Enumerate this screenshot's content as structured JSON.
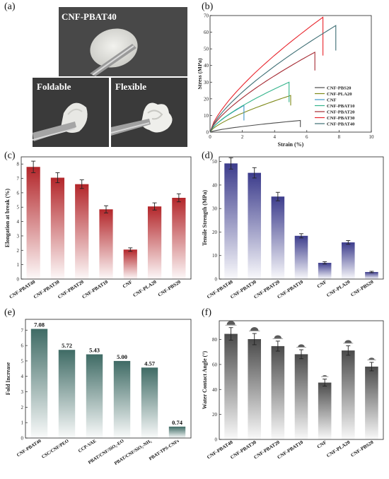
{
  "panels": {
    "a": "(a)",
    "b": "(b)",
    "c": "(c)",
    "d": "(d)",
    "e": "(e)",
    "f": "(f)"
  },
  "photos": {
    "main_caption": "CNF-PBAT40",
    "foldable_caption": "Foldable",
    "flexible_caption": "Flexible"
  },
  "colors": {
    "red": "#b3262a",
    "blue": "#3c3c8c",
    "teal": "#3f6b65",
    "gray": "#4a4a4a"
  },
  "chart_data": [
    {
      "id": "b",
      "type": "line",
      "xlabel": "Strain (%)",
      "ylabel": "Stress (MPa)",
      "xlim": [
        0,
        10
      ],
      "ylim": [
        0,
        70
      ],
      "xticks": [
        0,
        2,
        4,
        6,
        8,
        10
      ],
      "yticks": [
        0,
        10,
        20,
        30,
        40,
        50,
        60,
        70
      ],
      "legend_position": "bottom-right",
      "series": [
        {
          "name": "CNF-PBS20",
          "color": "#4d4d4d",
          "break_x": 5.6,
          "break_y": 7,
          "drop_to": 3
        },
        {
          "name": "CNF-PLA20",
          "color": "#7f8a1a",
          "break_x": 5.0,
          "break_y": 22,
          "drop_to": 16
        },
        {
          "name": "CNF",
          "color": "#3f95c8",
          "break_x": 2.1,
          "break_y": 16,
          "drop_to": 7
        },
        {
          "name": "CNF-PBAT10",
          "color": "#34b48c",
          "break_x": 4.9,
          "break_y": 30,
          "drop_to": 18
        },
        {
          "name": "CNF-PBAT20",
          "color": "#a52a33",
          "break_x": 6.5,
          "break_y": 48,
          "drop_to": 37
        },
        {
          "name": "CNF-PBAT30",
          "color": "#e8232b",
          "break_x": 7.0,
          "break_y": 69,
          "drop_to": 46
        },
        {
          "name": "CNF-PBAT40",
          "color": "#3c6d73",
          "break_x": 7.8,
          "break_y": 64,
          "drop_to": 49
        }
      ]
    },
    {
      "id": "c",
      "type": "bar",
      "ylabel": "Elongation at break (%)",
      "ylim": [
        0,
        8.5
      ],
      "yticks": [
        0,
        1,
        2,
        3,
        4,
        5,
        6,
        7,
        8
      ],
      "categories": [
        "CNF-PBAT40",
        "CNF-PBAT30",
        "CNF-PBAT20",
        "CNF-PBAT10",
        "CNF",
        "CNF-PLA20",
        "CNF-PBS20"
      ],
      "values": [
        7.8,
        7.05,
        6.6,
        4.85,
        2.05,
        5.05,
        5.65
      ],
      "errors": [
        0.4,
        0.35,
        0.3,
        0.25,
        0.12,
        0.25,
        0.28
      ]
    },
    {
      "id": "d",
      "type": "bar",
      "ylabel": "Tensile Strength (MPa)",
      "ylim": [
        0,
        52
      ],
      "yticks": [
        0,
        10,
        20,
        30,
        40,
        50
      ],
      "categories": [
        "CNF-PBAT40",
        "CNF-PBAT30",
        "CNF-PBAT20",
        "CNF-PBAT10",
        "CNF",
        "CNF-PLA20",
        "CNF-PBS20"
      ],
      "values": [
        49.2,
        45.2,
        35.1,
        18.4,
        6.9,
        15.6,
        3.0
      ],
      "errors": [
        2.4,
        2.2,
        1.8,
        0.9,
        0.5,
        0.8,
        0.3
      ]
    },
    {
      "id": "e",
      "type": "bar",
      "ylabel": "Fold Increase",
      "ylim": [
        0,
        7.7
      ],
      "yticks": [
        0,
        1,
        2,
        3,
        4,
        5,
        6,
        7
      ],
      "categories": [
        "CNF-PBAT40",
        "CSC/CNF/PEO",
        "CCP-VAE",
        "PBAT/CNF/SiO₂-EO",
        "PBAT/CNF/SiO₂-NH₂",
        "PBAT-TPS-CNFs"
      ],
      "values": [
        7.08,
        5.72,
        5.43,
        5.0,
        4.57,
        0.74
      ],
      "value_labels": [
        "7.08",
        "5.72",
        "5.43",
        "5.00",
        "4.57",
        "0.74"
      ]
    },
    {
      "id": "f",
      "type": "bar",
      "ylabel": "Water Contact Angle (°)",
      "ylim": [
        0,
        95
      ],
      "yticks": [
        0,
        20,
        40,
        60,
        80
      ],
      "categories": [
        "CNF-PBAT40",
        "CNF-PBAT30",
        "CNF-PBAT20",
        "CNF-PBAT10",
        "CNF",
        "CNF-PLA20",
        "CNF-PBS20"
      ],
      "values": [
        84.5,
        80.3,
        74.7,
        68.2,
        45.5,
        71.2,
        58.3
      ],
      "errors": [
        5.0,
        4.5,
        4.0,
        3.6,
        2.8,
        3.8,
        3.4
      ]
    }
  ]
}
